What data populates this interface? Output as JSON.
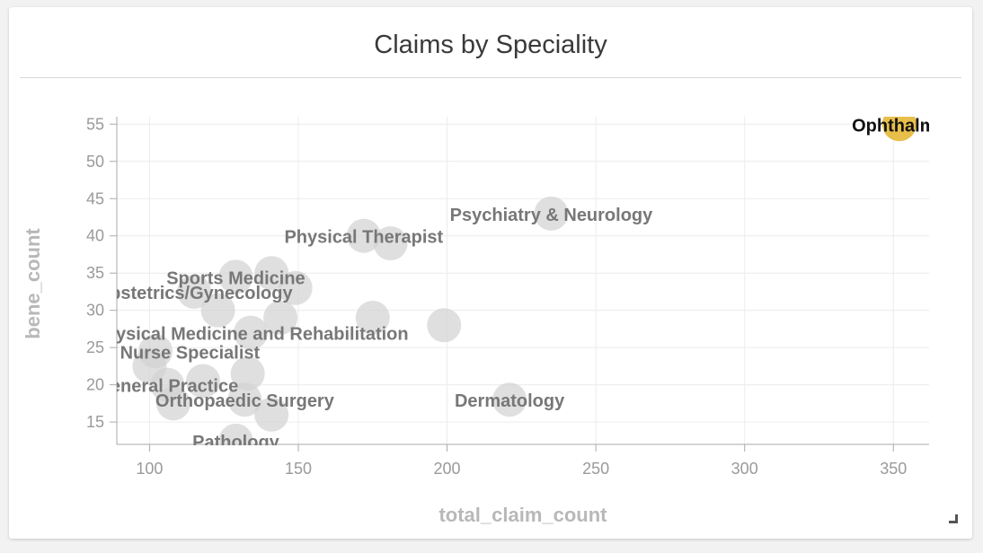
{
  "card": {
    "title": "Claims by Speciality"
  },
  "chart_data": {
    "type": "scatter",
    "title": "Claims by Speciality",
    "xlabel": "total_claim_count",
    "ylabel": "bene_count",
    "xlim": [
      89,
      362
    ],
    "ylim": [
      12,
      56
    ],
    "xticks": [
      100,
      150,
      200,
      250,
      300,
      350
    ],
    "yticks": [
      15,
      20,
      25,
      30,
      35,
      40,
      45,
      50,
      55
    ],
    "grid": true,
    "highlight_color": "#e8bf4a",
    "point_color": "#d3d3d3",
    "points": [
      {
        "x": 352,
        "y": 55,
        "label": "Ophthalmo",
        "highlight": true
      },
      {
        "x": 235,
        "y": 43,
        "label": "Psychiatry & Neurology"
      },
      {
        "x": 172,
        "y": 40,
        "label": "Physical Therapist"
      },
      {
        "x": 181,
        "y": 39,
        "label": ""
      },
      {
        "x": 129,
        "y": 34.5,
        "label": "Sports Medicine"
      },
      {
        "x": 141,
        "y": 35,
        "label": ""
      },
      {
        "x": 149,
        "y": 33,
        "label": ""
      },
      {
        "x": 115,
        "y": 32.5,
        "label": "Obstetrics/Gynecology"
      },
      {
        "x": 123,
        "y": 30,
        "label": ""
      },
      {
        "x": 144,
        "y": 29,
        "label": ""
      },
      {
        "x": 175,
        "y": 29,
        "label": ""
      },
      {
        "x": 199,
        "y": 28,
        "label": ""
      },
      {
        "x": 134,
        "y": 27,
        "label": "Physical Medicine and Rehabilitation"
      },
      {
        "x": 102,
        "y": 24.5,
        "label": "Clinical Nurse Specialist"
      },
      {
        "x": 100,
        "y": 22.5,
        "label": ""
      },
      {
        "x": 133,
        "y": 21.5,
        "label": ""
      },
      {
        "x": 106,
        "y": 20,
        "label": "General Practice"
      },
      {
        "x": 118,
        "y": 20.5,
        "label": ""
      },
      {
        "x": 132,
        "y": 18,
        "label": "Orthopaedic Surgery"
      },
      {
        "x": 108,
        "y": 17.5,
        "label": ""
      },
      {
        "x": 141,
        "y": 16,
        "label": ""
      },
      {
        "x": 221,
        "y": 18,
        "label": "Dermatology"
      },
      {
        "x": 129,
        "y": 12.5,
        "label": "Pathology"
      }
    ]
  }
}
